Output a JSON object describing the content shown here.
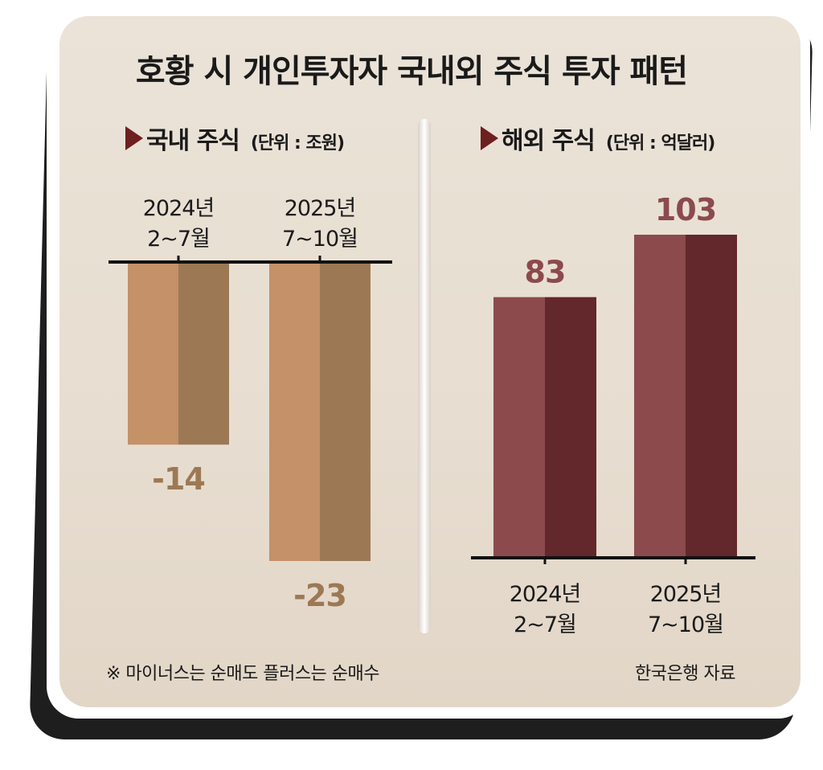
{
  "title": "호황 시 개인투자자 국내외 주식 투자 패턴",
  "footnote": "※ 마이너스는 순매도 플러스는 순매수",
  "source": "한국은행 자료",
  "colors": {
    "domestic_light": "#c49169",
    "domestic_dark": "#9c7954",
    "domestic_value": "#9c7954",
    "overseas_light": "#8c4a4d",
    "overseas_dark": "#62282b",
    "overseas_value": "#8c4a4d",
    "triangle": "#6e1f1f"
  },
  "sections": {
    "domestic": {
      "name": "국내 주식",
      "unit": "(단위 : 조원)"
    },
    "overseas": {
      "name": "해외 주식",
      "unit": "(단위 : 억달러)"
    }
  },
  "chart_data": [
    {
      "type": "bar",
      "title": "국내 주식",
      "unit": "(단위 : 조원)",
      "categories": [
        {
          "line1": "2024년",
          "line2": "2~7월"
        },
        {
          "line1": "2025년",
          "line2": "7~10월"
        }
      ],
      "values": [
        -14,
        -23
      ],
      "value_labels": [
        "-14",
        "-23"
      ],
      "ylim": [
        -23,
        0
      ]
    },
    {
      "type": "bar",
      "title": "해외 주식",
      "unit": "(단위 : 억달러)",
      "categories": [
        {
          "line1": "2024년",
          "line2": "2~7월"
        },
        {
          "line1": "2025년",
          "line2": "7~10월"
        }
      ],
      "values": [
        83,
        103
      ],
      "value_labels": [
        "83",
        "103"
      ],
      "ylim": [
        0,
        103
      ]
    }
  ]
}
